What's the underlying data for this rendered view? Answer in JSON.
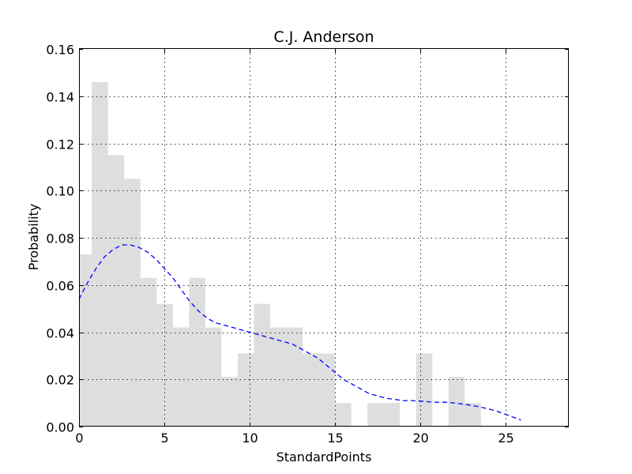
{
  "chart_data": {
    "type": "histogram",
    "title": "C.J. Anderson",
    "xlabel": "StandardPoints",
    "ylabel": "Probability",
    "xlim": [
      0,
      28.7
    ],
    "ylim": [
      0,
      0.16
    ],
    "xticks": [
      0,
      5,
      10,
      15,
      20,
      25
    ],
    "xtick_labels": [
      "0",
      "5",
      "10",
      "15",
      "20",
      "25"
    ],
    "yticks": [
      0,
      0.02,
      0.04,
      0.06,
      0.08,
      0.1,
      0.12,
      0.14,
      0.16
    ],
    "ytick_labels": [
      "0.00",
      "0.02",
      "0.04",
      "0.06",
      "0.08",
      "0.10",
      "0.12",
      "0.14",
      "0.16"
    ],
    "grid": true,
    "bar_color": "#dedede",
    "line_color": "#0000ff",
    "bins": [
      {
        "x0": -0.3,
        "x1": 0.75,
        "value": 0.073
      },
      {
        "x0": 0.75,
        "x1": 1.7,
        "value": 0.146
      },
      {
        "x0": 1.7,
        "x1": 2.65,
        "value": 0.115
      },
      {
        "x0": 2.65,
        "x1": 3.6,
        "value": 0.105
      },
      {
        "x0": 3.6,
        "x1": 4.55,
        "value": 0.063
      },
      {
        "x0": 4.55,
        "x1": 5.5,
        "value": 0.052
      },
      {
        "x0": 5.5,
        "x1": 6.45,
        "value": 0.042
      },
      {
        "x0": 6.45,
        "x1": 7.4,
        "value": 0.063
      },
      {
        "x0": 7.4,
        "x1": 8.35,
        "value": 0.042
      },
      {
        "x0": 8.35,
        "x1": 9.3,
        "value": 0.021
      },
      {
        "x0": 9.3,
        "x1": 10.25,
        "value": 0.031
      },
      {
        "x0": 10.25,
        "x1": 11.2,
        "value": 0.052
      },
      {
        "x0": 11.2,
        "x1": 12.15,
        "value": 0.042
      },
      {
        "x0": 12.15,
        "x1": 13.1,
        "value": 0.042
      },
      {
        "x0": 13.1,
        "x1": 14.05,
        "value": 0.031
      },
      {
        "x0": 14.05,
        "x1": 15.0,
        "value": 0.031
      },
      {
        "x0": 15.0,
        "x1": 15.95,
        "value": 0.01
      },
      {
        "x0": 15.95,
        "x1": 16.9,
        "value": 0.0
      },
      {
        "x0": 16.9,
        "x1": 17.85,
        "value": 0.01
      },
      {
        "x0": 17.85,
        "x1": 18.8,
        "value": 0.01
      },
      {
        "x0": 18.8,
        "x1": 19.75,
        "value": 0.0
      },
      {
        "x0": 19.75,
        "x1": 20.7,
        "value": 0.031
      },
      {
        "x0": 20.7,
        "x1": 21.65,
        "value": 0.0
      },
      {
        "x0": 21.65,
        "x1": 22.6,
        "value": 0.021
      },
      {
        "x0": 22.6,
        "x1": 23.55,
        "value": 0.01
      }
    ],
    "kde": {
      "x": [
        0,
        0.5,
        1,
        1.5,
        2,
        2.5,
        3,
        3.5,
        4,
        4.5,
        5,
        5.5,
        6,
        6.5,
        7,
        7.5,
        8,
        8.5,
        9,
        9.5,
        10,
        10.5,
        11,
        11.5,
        12,
        12.5,
        13,
        13.5,
        14,
        14.5,
        15,
        15.5,
        16,
        16.5,
        17,
        17.5,
        18,
        18.5,
        19,
        19.5,
        20,
        20.5,
        21,
        21.5,
        22,
        22.5,
        23,
        23.5,
        24,
        24.5,
        25,
        25.5,
        25.9
      ],
      "y": [
        0.054,
        0.061,
        0.067,
        0.072,
        0.075,
        0.077,
        0.077,
        0.076,
        0.074,
        0.071,
        0.067,
        0.063,
        0.058,
        0.053,
        0.049,
        0.046,
        0.044,
        0.043,
        0.042,
        0.041,
        0.04,
        0.039,
        0.038,
        0.037,
        0.036,
        0.035,
        0.033,
        0.031,
        0.029,
        0.026,
        0.023,
        0.02,
        0.018,
        0.016,
        0.014,
        0.013,
        0.012,
        0.0115,
        0.011,
        0.011,
        0.0108,
        0.0105,
        0.0103,
        0.0103,
        0.01,
        0.0095,
        0.009,
        0.0083,
        0.0075,
        0.0065,
        0.0052,
        0.0038,
        0.0028
      ]
    }
  }
}
